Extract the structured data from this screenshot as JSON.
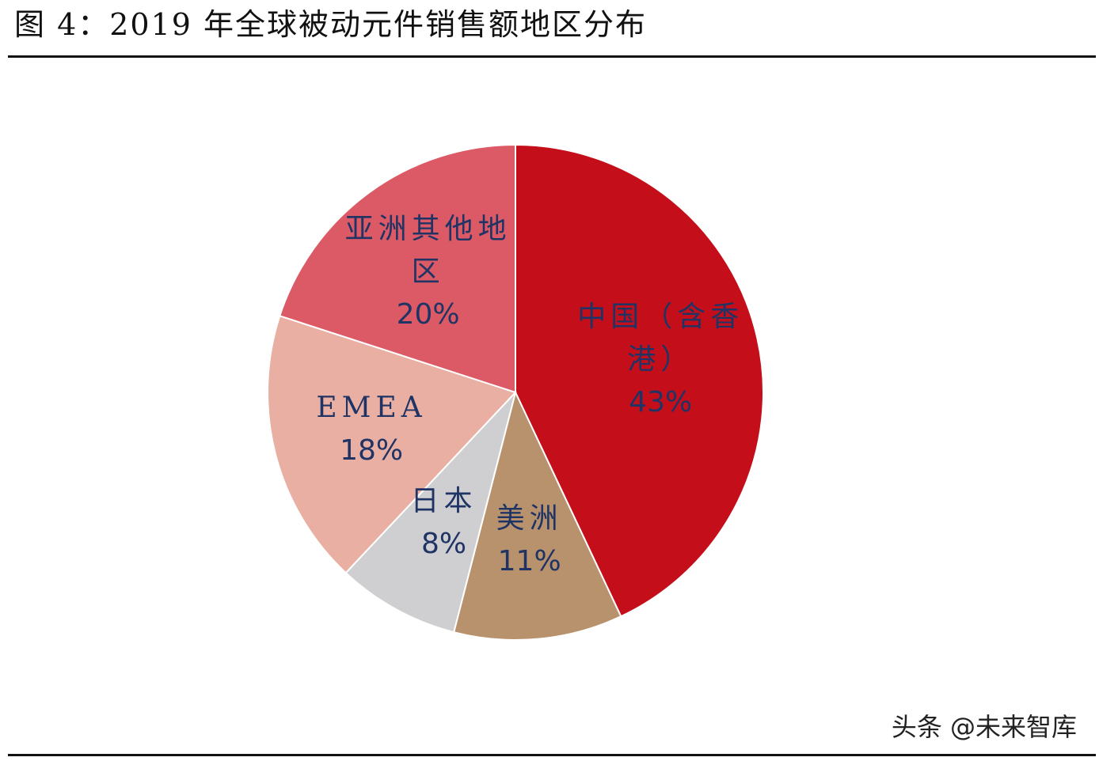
{
  "title": "图 4：2019 年全球被动元件销售额地区分布",
  "watermark": "头条 @未来智库",
  "chart_data": {
    "type": "pie",
    "categories": [
      "中国（含香港）",
      "美洲",
      "日本",
      "EMEA",
      "亚洲其他地区"
    ],
    "values": [
      43,
      11,
      8,
      18,
      20
    ],
    "value_labels": [
      "43%",
      "11%",
      "8%",
      "18%",
      "20%"
    ],
    "colors": [
      "#c40f1b",
      "#b8926c",
      "#cfcfd2",
      "#e9afa3",
      "#db5a66"
    ]
  }
}
